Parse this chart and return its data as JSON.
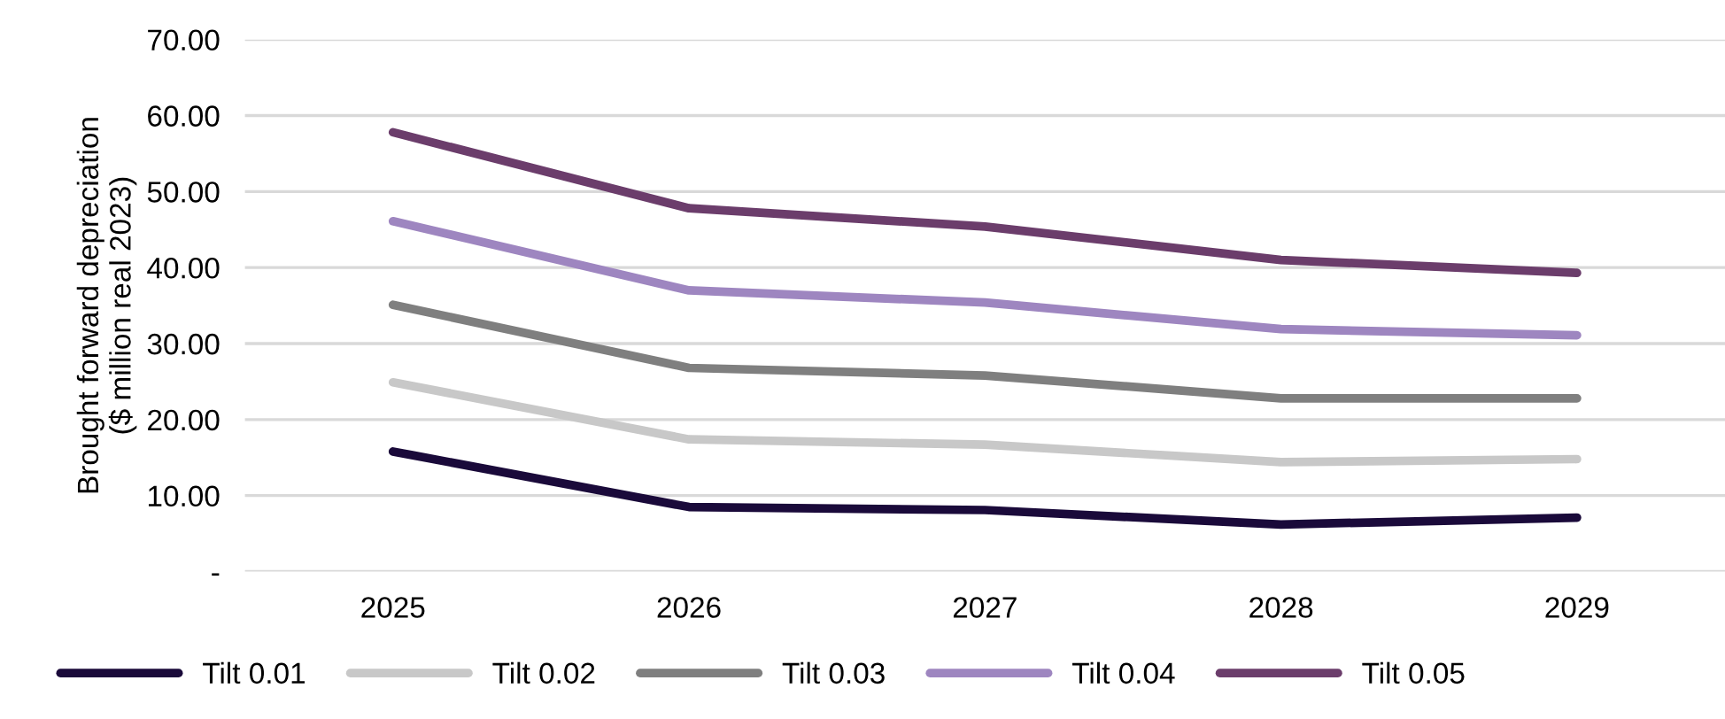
{
  "chart_data": {
    "type": "line",
    "ylabel": "Brought forward depreciation\n($ million real 2023)",
    "categories": [
      "2025",
      "2026",
      "2027",
      "2028",
      "2029"
    ],
    "series": [
      {
        "name": "Tilt 0.01",
        "color": "#1a0a3a",
        "values": [
          15.8,
          8.5,
          8.1,
          6.2,
          7.1
        ]
      },
      {
        "name": "Tilt 0.02",
        "color": "#c8c8c8",
        "values": [
          24.9,
          17.4,
          16.7,
          14.4,
          14.8
        ]
      },
      {
        "name": "Tilt 0.03",
        "color": "#7f7f7f",
        "values": [
          35.1,
          26.8,
          25.8,
          22.8,
          22.8
        ]
      },
      {
        "name": "Tilt 0.04",
        "color": "#9e86c0",
        "values": [
          46.1,
          37.0,
          35.4,
          31.9,
          31.1
        ]
      },
      {
        "name": "Tilt 0.05",
        "color": "#6b3d6b",
        "values": [
          57.8,
          47.8,
          45.4,
          41.0,
          39.3
        ]
      }
    ],
    "ylim": [
      0,
      70
    ],
    "yticks": [
      {
        "value": 0,
        "label": "-"
      },
      {
        "value": 10,
        "label": "10.00"
      },
      {
        "value": 20,
        "label": "20.00"
      },
      {
        "value": 30,
        "label": "30.00"
      },
      {
        "value": 40,
        "label": "40.00"
      },
      {
        "value": 50,
        "label": "50.00"
      },
      {
        "value": 60,
        "label": "60.00"
      },
      {
        "value": 70,
        "label": "70.00"
      }
    ],
    "grid": "y",
    "legend": "bottom",
    "marker": "none",
    "line_style": "solid"
  }
}
